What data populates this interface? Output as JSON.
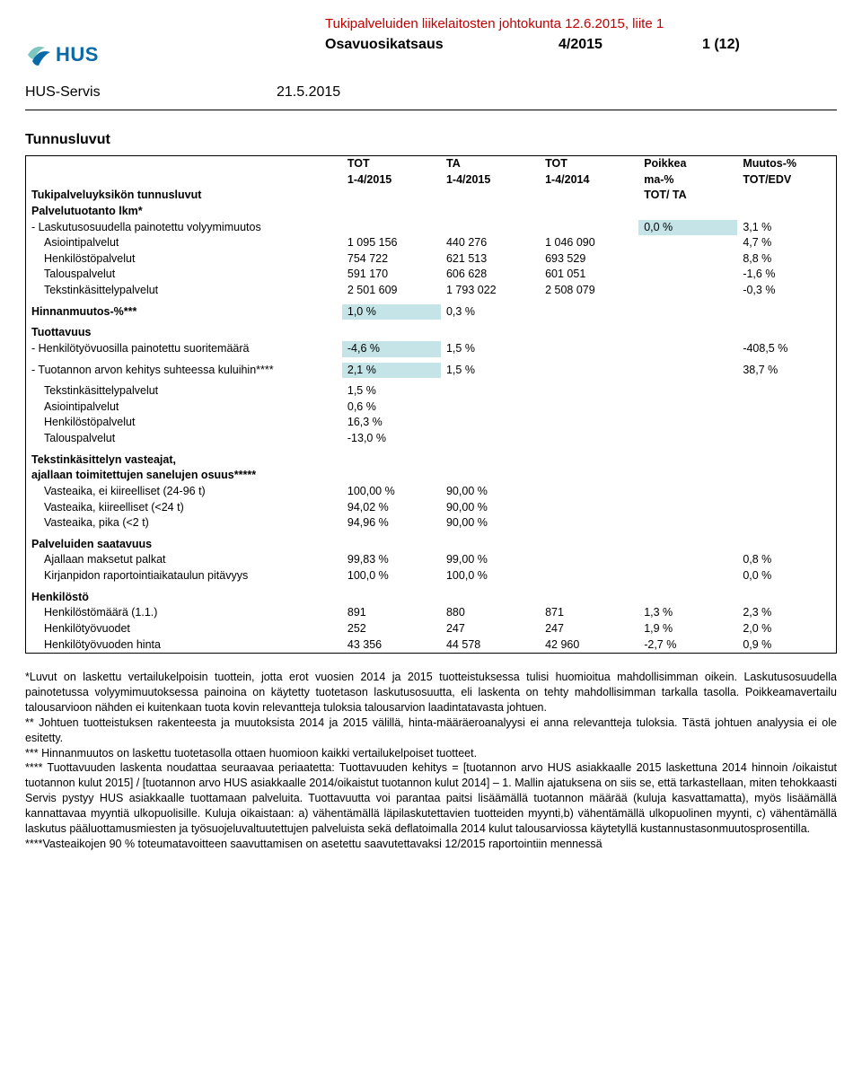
{
  "header": {
    "attachment_line": "Tukipalveluiden liikelaitosten johtokunta 12.6.2015, liite 1",
    "report_title": "Osavuosikatsaus",
    "period": "4/2015",
    "page_info": "1 (12)",
    "unit_name": "HUS-Servis",
    "report_date": "21.5.2015",
    "logo_text": "HUS"
  },
  "section_title": "Tunnusluvut",
  "columns": {
    "label": "Tukipalveluyksikön tunnusluvut",
    "c1a": "TOT",
    "c1b": "1-4/2015",
    "c2a": "TA",
    "c2b": "1-4/2015",
    "c3a": "TOT",
    "c3b": "1-4/2014",
    "c4a": "Poikkea",
    "c4b": "ma-%",
    "c4c": "TOT/ TA",
    "c5a": "Muutos-%",
    "c5b": "TOT/EDV"
  },
  "group_production": {
    "title": "Palvelutuotanto lkm*",
    "weighted_row": "- Laskutusosuudella painotettu volyymimuutos",
    "weighted_dev": "0,0 %",
    "weighted_chg": "3,1 %",
    "rows": [
      {
        "label": "Asiointipalvelut",
        "v1": "1 095 156",
        "v2": "440 276",
        "v3": "1 046 090",
        "chg": "4,7 %"
      },
      {
        "label": "Henkilöstöpalvelut",
        "v1": "754 722",
        "v2": "621 513",
        "v3": "693 529",
        "chg": "8,8 %"
      },
      {
        "label": "Talouspalvelut",
        "v1": "591 170",
        "v2": "606 628",
        "v3": "601 051",
        "chg": "-1,6 %"
      },
      {
        "label": "Tekstinkäsittelypalvelut",
        "v1": "2 501 609",
        "v2": "1 793 022",
        "v3": "2 508 079",
        "chg": "-0,3 %"
      }
    ]
  },
  "group_price": {
    "title": "Hinnanmuutos-%***",
    "v1": "1,0 %",
    "v2": "0,3 %"
  },
  "group_productivity": {
    "title": "Tuottavuus",
    "row1_label": "- Henkilötyövuosilla painotettu suoritemäärä",
    "row1_v1": "-4,6 %",
    "row1_v2": "1,5 %",
    "row1_chg": "-408,5 %",
    "row2_label": "- Tuotannon arvon kehitys suhteessa kuluihin****",
    "row2_v1": "2,1 %",
    "row2_v2": "1,5 %",
    "row2_chg": "38,7 %",
    "sub_rows": [
      {
        "label": "Tekstinkäsittelypalvelut",
        "v1": "1,5 %"
      },
      {
        "label": "Asiointipalvelut",
        "v1": "0,6 %"
      },
      {
        "label": "Henkilöstöpalvelut",
        "v1": "16,3 %"
      },
      {
        "label": "Talouspalvelut",
        "v1": "-13,0 %"
      }
    ]
  },
  "group_text": {
    "title1": "Tekstinkäsittelyn vasteajat,",
    "title2": "ajallaan toimitettujen sanelujen osuus*****",
    "rows": [
      {
        "label": "Vasteaika, ei kiireelliset (24-96 t)",
        "v1": "100,00 %",
        "v2": "90,00 %"
      },
      {
        "label": "Vasteaika, kiireelliset (<24 t)",
        "v1": "94,02 %",
        "v2": "90,00 %"
      },
      {
        "label": "Vasteaika, pika (<2 t)",
        "v1": "94,96 %",
        "v2": "90,00 %"
      }
    ]
  },
  "group_avail": {
    "title": "Palveluiden saatavuus",
    "rows": [
      {
        "label": "Ajallaan maksetut palkat",
        "v1": "99,83 %",
        "v2": "99,00 %",
        "chg": "0,8 %"
      },
      {
        "label": "Kirjanpidon raportointiaikataulun pitävyys",
        "v1": "100,0 %",
        "v2": "100,0 %",
        "chg": "0,0 %"
      }
    ]
  },
  "group_staff": {
    "title": "Henkilöstö",
    "rows": [
      {
        "label": "Henkilöstömäärä (1.1.)",
        "v1": "891",
        "v2": "880",
        "v3": "871",
        "dev": "1,3 %",
        "chg": "2,3 %"
      },
      {
        "label": "Henkilötyövuodet",
        "v1": "252",
        "v2": "247",
        "v3": "247",
        "dev": "1,9 %",
        "chg": "2,0 %"
      },
      {
        "label": "Henkilötyövuoden hinta",
        "v1": "43 356",
        "v2": "44 578",
        "v3": "42 960",
        "dev": "-2,7 %",
        "chg": "0,9 %"
      }
    ]
  },
  "footnotes": {
    "p1": "*Luvut on laskettu vertailukelpoisin tuottein, jotta erot vuosien 2014 ja 2015 tuotteistuksessa tulisi huomioitua mahdollisimman oikein. Laskutusosuudella painotetussa volyymimuutoksessa painoina on käytetty tuotetason laskutusosuutta, eli laskenta on tehty mahdollisimman tarkalla tasolla. Poikkeamavertailu talousarvioon nähden ei kuitenkaan tuota kovin relevantteja tuloksia talousarvion laadintatavasta johtuen.",
    "p2": "** Johtuen tuotteistuksen rakenteesta ja muutoksista 2014 ja 2015 välillä, hinta-määräeroanalyysi ei anna relevantteja tuloksia. Tästä johtuen analyysia ei ole esitetty.",
    "p3": "*** Hinnanmuutos on laskettu tuotetasolla ottaen huomioon kaikki vertailukelpoiset tuotteet.",
    "p4": "**** Tuottavuuden laskenta noudattaa seuraavaa periaatetta: Tuottavuuden kehitys = [tuotannon arvo HUS asiakkaalle 2015 laskettuna 2014 hinnoin /oikaistut tuotannon kulut 2015] / [tuotannon arvo HUS asiakkaalle 2014/oikaistut tuotannon kulut 2014] – 1. Mallin ajatuksena on siis se, että tarkastellaan, miten tehokkaasti Servis pystyy HUS asiakkaalle tuottamaan palveluita. Tuottavuutta voi parantaa paitsi lisäämällä tuotannon määrää (kuluja kasvattamatta), myös lisäämällä kannattavaa myyntiä ulkopuolisille. Kuluja oikaistaan: a) vähentämällä läpilaskutettavien tuotteiden myynti,b) vähentämällä ulkopuolinen myynti, c) vähentämällä laskutus pääluottamusmiesten ja työsuojeluvaltuutettujen palveluista sekä deflatoimalla 2014 kulut talousarviossa käytetyllä kustannustasonmuutosprosentilla.",
    "p5": "****Vasteaikojen 90 % toteumatavoitteen saavuttamisen on asetettu saavutettavaksi 12/2015 raportointiin mennessä"
  }
}
